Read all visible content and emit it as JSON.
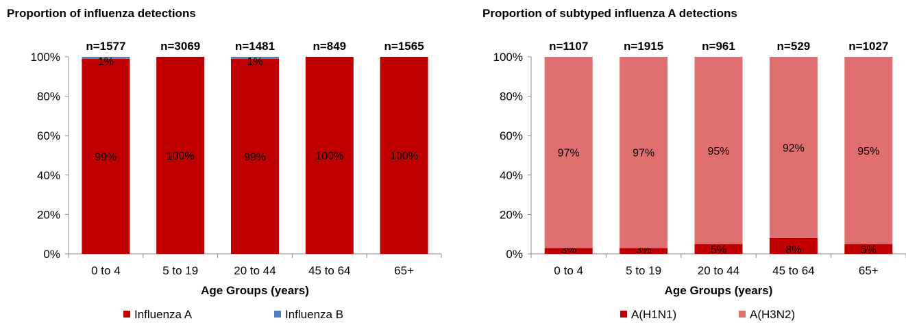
{
  "chart_data": [
    {
      "type": "bar",
      "stacked": true,
      "percent": true,
      "title": "Proportion of influenza detections",
      "xlabel": "Age Groups (years)",
      "ylabel": "",
      "ylim": [
        0,
        100
      ],
      "yticks": [
        "0%",
        "20%",
        "40%",
        "60%",
        "80%",
        "100%"
      ],
      "categories": [
        "0 to 4",
        "5 to 19",
        "20 to 44",
        "45 to 64",
        "65+"
      ],
      "totals": [
        "n=1577",
        "n=3069",
        "n=1481",
        "n=849",
        "n=1565"
      ],
      "series": [
        {
          "name": "Influenza A",
          "color": "#c00000",
          "values": [
            99,
            100,
            99,
            100,
            100
          ],
          "labels": [
            "99%",
            "100%",
            "99%",
            "100%",
            "100%"
          ]
        },
        {
          "name": "Influenza B",
          "color": "#4f81bd",
          "values": [
            1,
            0,
            1,
            0,
            0
          ],
          "labels": [
            "1%",
            "",
            "1%",
            "",
            ""
          ]
        }
      ],
      "legend": "bottom",
      "grid": false
    },
    {
      "type": "bar",
      "stacked": true,
      "percent": true,
      "title": "Proportion of subtyped influenza A detections",
      "xlabel": "Age Groups (years)",
      "ylabel": "",
      "ylim": [
        0,
        100
      ],
      "yticks": [
        "0%",
        "20%",
        "40%",
        "60%",
        "80%",
        "100%"
      ],
      "categories": [
        "0 to 4",
        "5 to 19",
        "20 to 44",
        "45 to 64",
        "65+"
      ],
      "totals": [
        "n=1107",
        "n=1915",
        "n=961",
        "n=529",
        "n=1027"
      ],
      "series": [
        {
          "name": "A(H1N1)",
          "color": "#c00000",
          "values": [
            3,
            3,
            5,
            8,
            5
          ],
          "labels": [
            "3%",
            "3%",
            "5%",
            "8%",
            "5%"
          ]
        },
        {
          "name": "A(H3N2)",
          "color": "#e07070",
          "values": [
            97,
            97,
            95,
            92,
            95
          ],
          "labels": [
            "97%",
            "97%",
            "95%",
            "92%",
            "95%"
          ]
        }
      ],
      "legend": "bottom",
      "grid": false
    }
  ]
}
